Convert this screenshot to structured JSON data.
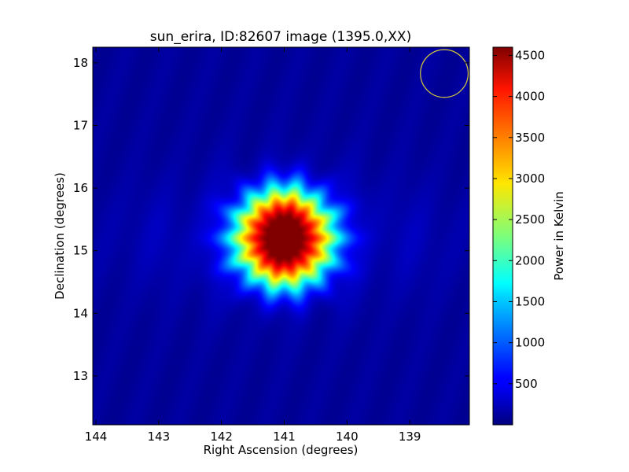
{
  "chart_data": {
    "type": "heatmap",
    "title": "sun_erira, ID:82607 image (1395.0,XX)",
    "xlabel": "Right Ascension (degrees)",
    "ylabel": "Declination (degrees)",
    "xlim": [
      144.05,
      138.05
    ],
    "ylim": [
      12.22,
      18.25
    ],
    "x_ticks": [
      144,
      143,
      142,
      141,
      140,
      139
    ],
    "y_ticks": [
      13,
      14,
      15,
      16,
      17,
      18
    ],
    "colorbar": {
      "label": "Power in Kelvin",
      "range": [
        0,
        4600
      ],
      "ticks": [
        500,
        1000,
        1500,
        2000,
        2500,
        3000,
        3500,
        4000,
        4500
      ],
      "colormap": "jet"
    },
    "source": {
      "ra_center": 141.0,
      "dec_center": 15.2,
      "peak_kelvin": 4600,
      "background_kelvin": 120
    },
    "beam_marker": {
      "ra": 138.45,
      "dec": 17.83,
      "radius_deg": 0.38,
      "color": "#d8cc3a"
    },
    "grid": false
  }
}
